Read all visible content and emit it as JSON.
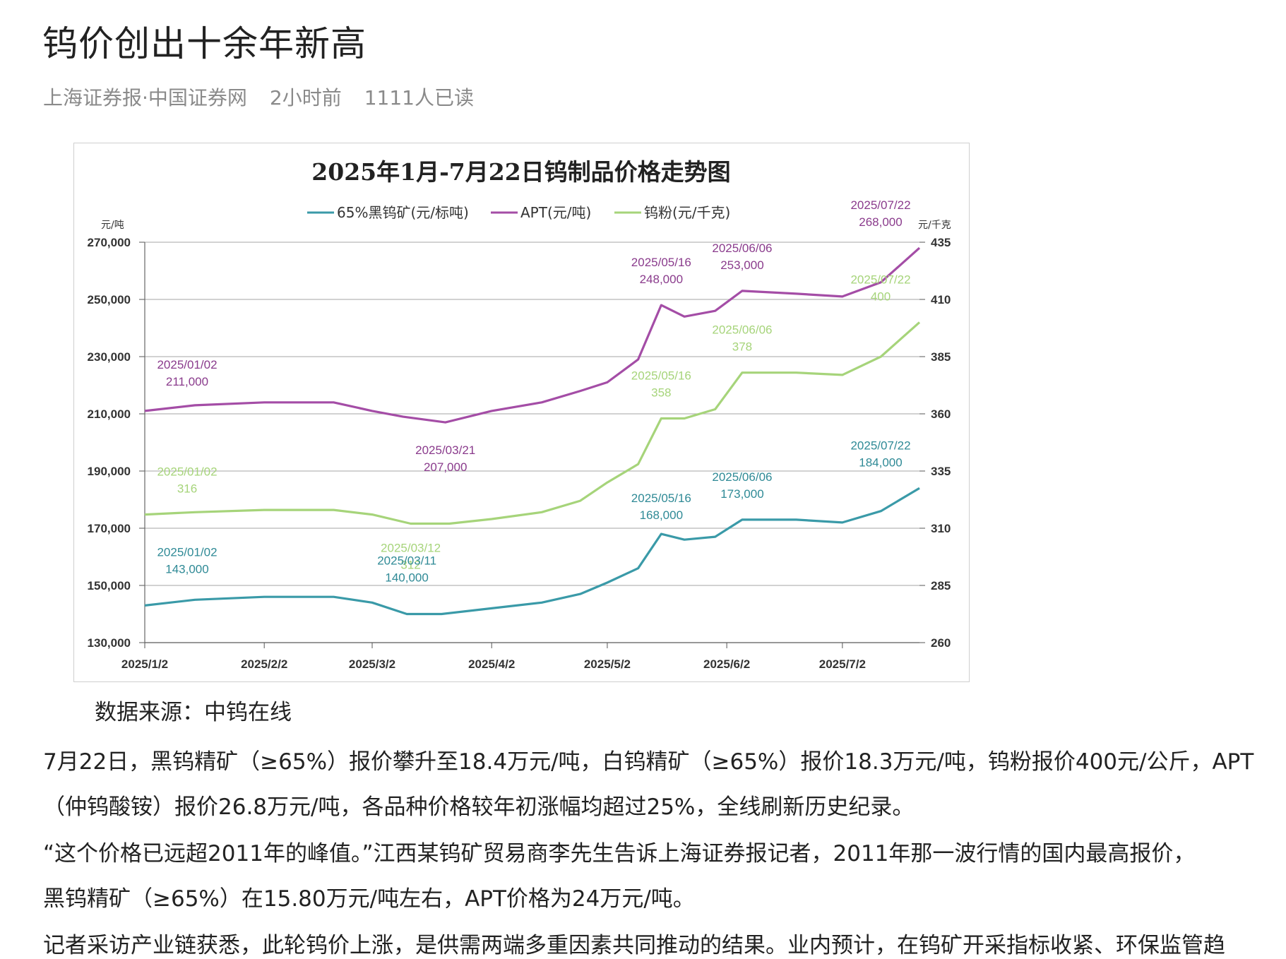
{
  "article": {
    "title": "钨价创出十余年新高",
    "source": "上海证券报·中国证券网",
    "time": "2小时前",
    "reads": "1111人已读",
    "caption": "数据来源：中钨在线",
    "paragraphs": [
      "7月22日，黑钨精矿（≥65%）报价攀升至18.4万元/吨，白钨精矿（≥65%）报价18.3万元/吨，钨粉报价400元/公斤，APT",
      "（仲钨酸铵）报价26.8万元/吨，各品种价格较年初涨幅均超过25%，全线刷新历史纪录。",
      "“这个价格已远超2011年的峰值。”江西某钨矿贸易商李先生告诉上海证券报记者，2011年那一波行情的国内最高报价，",
      "黑钨精矿（≥65%）在15.80万元/吨左右，APT价格为24万元/吨。",
      "记者采访产业链获悉，此轮钨价上涨，是供需两端多重因素共同推动的结果。业内预计，在钨矿开采指标收紧、环保监管趋"
    ]
  },
  "chart_data": {
    "type": "line",
    "title": "2025年1月-7月22日钨制品价格走势图",
    "left_axis": {
      "unit_label": "元/吨",
      "range": [
        130000,
        270000
      ],
      "ticks": [
        "130,000",
        "150,000",
        "170,000",
        "190,000",
        "210,000",
        "230,000",
        "250,000",
        "270,000"
      ]
    },
    "right_axis": {
      "unit_label": "元/千克",
      "range": [
        260,
        435
      ],
      "ticks": [
        "260",
        "285",
        "310",
        "335",
        "360",
        "385",
        "410",
        "435"
      ]
    },
    "x_ticks": [
      "2025/1/2",
      "2025/2/2",
      "2025/3/2",
      "2025/4/2",
      "2025/5/2",
      "2025/6/2",
      "2025/7/2"
    ],
    "legend_position": "top",
    "grid": true,
    "series": [
      {
        "name": "65%黑钨矿(元/标吨)",
        "axis": "left",
        "color": "#3a9aa8",
        "x": [
          "2025/1/2",
          "2025/1/15",
          "2025/2/2",
          "2025/2/20",
          "2025/3/2",
          "2025/3/11",
          "2025/3/20",
          "2025/4/2",
          "2025/4/15",
          "2025/4/25",
          "2025/5/2",
          "2025/5/10",
          "2025/5/16",
          "2025/5/22",
          "2025/5/30",
          "2025/6/6",
          "2025/6/20",
          "2025/7/2",
          "2025/7/12",
          "2025/7/22"
        ],
        "values": [
          143000,
          145000,
          146000,
          146000,
          144000,
          140000,
          140000,
          142000,
          144000,
          147000,
          151000,
          156000,
          168000,
          166000,
          167000,
          173000,
          173000,
          172000,
          176000,
          184000
        ]
      },
      {
        "name": "APT(元/吨)",
        "axis": "left",
        "color": "#a44da6",
        "x": [
          "2025/1/2",
          "2025/1/15",
          "2025/2/2",
          "2025/2/20",
          "2025/3/2",
          "2025/3/10",
          "2025/3/21",
          "2025/4/2",
          "2025/4/15",
          "2025/4/25",
          "2025/5/2",
          "2025/5/10",
          "2025/5/16",
          "2025/5/22",
          "2025/5/30",
          "2025/6/6",
          "2025/6/20",
          "2025/7/2",
          "2025/7/12",
          "2025/7/22"
        ],
        "values": [
          211000,
          213000,
          214000,
          214000,
          211000,
          209000,
          207000,
          211000,
          214000,
          218000,
          221000,
          229000,
          248000,
          244000,
          246000,
          253000,
          252000,
          251000,
          256000,
          268000
        ]
      },
      {
        "name": "钨粉(元/千克)",
        "axis": "right",
        "color": "#a6d47a",
        "x": [
          "2025/1/2",
          "2025/1/15",
          "2025/2/2",
          "2025/2/20",
          "2025/3/2",
          "2025/3/12",
          "2025/3/22",
          "2025/4/2",
          "2025/4/15",
          "2025/4/25",
          "2025/5/2",
          "2025/5/10",
          "2025/5/16",
          "2025/5/22",
          "2025/5/30",
          "2025/6/6",
          "2025/6/20",
          "2025/7/2",
          "2025/7/12",
          "2025/7/22"
        ],
        "values": [
          316,
          317,
          318,
          318,
          316,
          312,
          312,
          314,
          317,
          322,
          330,
          338,
          358,
          358,
          362,
          378,
          378,
          377,
          385,
          400
        ]
      }
    ],
    "annotations": [
      {
        "date": "2025/01/02",
        "value": "211,000",
        "series": "APT(元/吨)"
      },
      {
        "date": "2025/03/21",
        "value": "207,000",
        "series": "APT(元/吨)"
      },
      {
        "date": "2025/05/16",
        "value": "248,000",
        "series": "APT(元/吨)"
      },
      {
        "date": "2025/06/06",
        "value": "253,000",
        "series": "APT(元/吨)"
      },
      {
        "date": "2025/07/22",
        "value": "268,000",
        "series": "APT(元/吨)"
      },
      {
        "date": "2025/01/02",
        "value": "316",
        "series": "钨粉(元/千克)"
      },
      {
        "date": "2025/03/12",
        "value": "312",
        "series": "钨粉(元/千克)"
      },
      {
        "date": "2025/05/16",
        "value": "358",
        "series": "钨粉(元/千克)"
      },
      {
        "date": "2025/06/06",
        "value": "378",
        "series": "钨粉(元/千克)"
      },
      {
        "date": "2025/07/22",
        "value": "400",
        "series": "钨粉(元/千克)"
      },
      {
        "date": "2025/01/02",
        "value": "143,000",
        "series": "65%黑钨矿(元/标吨)"
      },
      {
        "date": "2025/03/11",
        "value": "140,000",
        "series": "65%黑钨矿(元/标吨)"
      },
      {
        "date": "2025/05/16",
        "value": "168,000",
        "series": "65%黑钨矿(元/标吨)"
      },
      {
        "date": "2025/06/06",
        "value": "173,000",
        "series": "65%黑钨矿(元/标吨)"
      },
      {
        "date": "2025/07/22",
        "value": "184,000",
        "series": "65%黑钨矿(元/标吨)"
      }
    ]
  }
}
